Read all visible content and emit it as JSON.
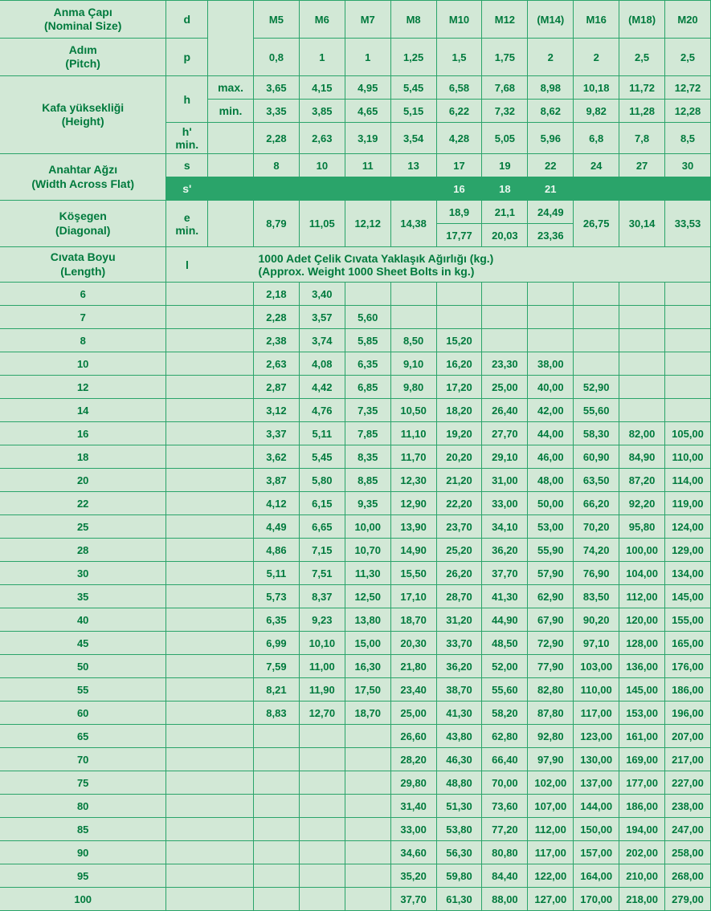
{
  "labels": {
    "nominal": "Anma Çapı\n(Nominal Size)",
    "pitch": "Adım\n(Pitch)",
    "height": "Kafa yüksekliği\n(Height)",
    "waf": "Anahtar Ağzı\n(Width Across Flat)",
    "diag": "Köşegen\n(Diagonal)",
    "length": "Cıvata Boyu\n(Length)",
    "weight": "1000 Adet Çelik Cıvata Yaklaşık Ağırlığı (kg.)\n(Approx. Weight 1000 Sheet Bolts in kg.)"
  },
  "syms": {
    "d": "d",
    "p": "p",
    "h": "h",
    "hp": "h'\nmin.",
    "s": "s",
    "sp": "s'",
    "e": "e\nmin.",
    "l": "l",
    "max": "max.",
    "min": "min."
  },
  "sizes": [
    "M5",
    "M6",
    "M7",
    "M8",
    "M10",
    "M12",
    "(M14)",
    "M16",
    "(M18)",
    "M20"
  ],
  "pitch": [
    "0,8",
    "1",
    "1",
    "1,25",
    "1,5",
    "1,75",
    "2",
    "2",
    "2,5",
    "2,5"
  ],
  "h_max": [
    "3,65",
    "4,15",
    "4,95",
    "5,45",
    "6,58",
    "7,68",
    "8,98",
    "10,18",
    "11,72",
    "12,72"
  ],
  "h_min": [
    "3,35",
    "3,85",
    "4,65",
    "5,15",
    "6,22",
    "7,32",
    "8,62",
    "9,82",
    "11,28",
    "12,28"
  ],
  "hp_min": [
    "2,28",
    "2,63",
    "3,19",
    "3,54",
    "4,28",
    "5,05",
    "5,96",
    "6,8",
    "7,8",
    "8,5"
  ],
  "s": [
    "8",
    "10",
    "11",
    "13",
    "17",
    "19",
    "22",
    "24",
    "27",
    "30"
  ],
  "sp": [
    "",
    "",
    "",
    "",
    "16",
    "18",
    "21",
    "",
    "",
    ""
  ],
  "e1": [
    "8,79",
    "11,05",
    "12,12",
    "14,38",
    "18,9",
    "21,1",
    "24,49",
    "26,75",
    "30,14",
    "33,53"
  ],
  "e2": [
    "",
    "",
    "",
    "",
    "17,77",
    "20,03",
    "23,36",
    "",
    "",
    ""
  ],
  "lengths": [
    "6",
    "7",
    "8",
    "10",
    "12",
    "14",
    "16",
    "18",
    "20",
    "22",
    "25",
    "28",
    "30",
    "35",
    "40",
    "45",
    "50",
    "55",
    "60",
    "65",
    "70",
    "75",
    "80",
    "85",
    "90",
    "95",
    "100"
  ],
  "weights": [
    [
      "2,18",
      "3,40",
      "",
      "",
      "",
      "",
      "",
      "",
      "",
      ""
    ],
    [
      "2,28",
      "3,57",
      "5,60",
      "",
      "",
      "",
      "",
      "",
      "",
      ""
    ],
    [
      "2,38",
      "3,74",
      "5,85",
      "8,50",
      "15,20",
      "",
      "",
      "",
      "",
      ""
    ],
    [
      "2,63",
      "4,08",
      "6,35",
      "9,10",
      "16,20",
      "23,30",
      "38,00",
      "",
      "",
      ""
    ],
    [
      "2,87",
      "4,42",
      "6,85",
      "9,80",
      "17,20",
      "25,00",
      "40,00",
      "52,90",
      "",
      ""
    ],
    [
      "3,12",
      "4,76",
      "7,35",
      "10,50",
      "18,20",
      "26,40",
      "42,00",
      "55,60",
      "",
      ""
    ],
    [
      "3,37",
      "5,11",
      "7,85",
      "11,10",
      "19,20",
      "27,70",
      "44,00",
      "58,30",
      "82,00",
      "105,00"
    ],
    [
      "3,62",
      "5,45",
      "8,35",
      "11,70",
      "20,20",
      "29,10",
      "46,00",
      "60,90",
      "84,90",
      "110,00"
    ],
    [
      "3,87",
      "5,80",
      "8,85",
      "12,30",
      "21,20",
      "31,00",
      "48,00",
      "63,50",
      "87,20",
      "114,00"
    ],
    [
      "4,12",
      "6,15",
      "9,35",
      "12,90",
      "22,20",
      "33,00",
      "50,00",
      "66,20",
      "92,20",
      "119,00"
    ],
    [
      "4,49",
      "6,65",
      "10,00",
      "13,90",
      "23,70",
      "34,10",
      "53,00",
      "70,20",
      "95,80",
      "124,00"
    ],
    [
      "4,86",
      "7,15",
      "10,70",
      "14,90",
      "25,20",
      "36,20",
      "55,90",
      "74,20",
      "100,00",
      "129,00"
    ],
    [
      "5,11",
      "7,51",
      "11,30",
      "15,50",
      "26,20",
      "37,70",
      "57,90",
      "76,90",
      "104,00",
      "134,00"
    ],
    [
      "5,73",
      "8,37",
      "12,50",
      "17,10",
      "28,70",
      "41,30",
      "62,90",
      "83,50",
      "112,00",
      "145,00"
    ],
    [
      "6,35",
      "9,23",
      "13,80",
      "18,70",
      "31,20",
      "44,90",
      "67,90",
      "90,20",
      "120,00",
      "155,00"
    ],
    [
      "6,99",
      "10,10",
      "15,00",
      "20,30",
      "33,70",
      "48,50",
      "72,90",
      "97,10",
      "128,00",
      "165,00"
    ],
    [
      "7,59",
      "11,00",
      "16,30",
      "21,80",
      "36,20",
      "52,00",
      "77,90",
      "103,00",
      "136,00",
      "176,00"
    ],
    [
      "8,21",
      "11,90",
      "17,50",
      "23,40",
      "38,70",
      "55,60",
      "82,80",
      "110,00",
      "145,00",
      "186,00"
    ],
    [
      "8,83",
      "12,70",
      "18,70",
      "25,00",
      "41,30",
      "58,20",
      "87,80",
      "117,00",
      "153,00",
      "196,00"
    ],
    [
      "",
      "",
      "",
      "26,60",
      "43,80",
      "62,80",
      "92,80",
      "123,00",
      "161,00",
      "207,00"
    ],
    [
      "",
      "",
      "",
      "28,20",
      "46,30",
      "66,40",
      "97,90",
      "130,00",
      "169,00",
      "217,00"
    ],
    [
      "",
      "",
      "",
      "29,80",
      "48,80",
      "70,00",
      "102,00",
      "137,00",
      "177,00",
      "227,00"
    ],
    [
      "",
      "",
      "",
      "31,40",
      "51,30",
      "73,60",
      "107,00",
      "144,00",
      "186,00",
      "238,00"
    ],
    [
      "",
      "",
      "",
      "33,00",
      "53,80",
      "77,20",
      "112,00",
      "150,00",
      "194,00",
      "247,00"
    ],
    [
      "",
      "",
      "",
      "34,60",
      "56,30",
      "80,80",
      "117,00",
      "157,00",
      "202,00",
      "258,00"
    ],
    [
      "",
      "",
      "",
      "35,20",
      "59,80",
      "84,40",
      "122,00",
      "164,00",
      "210,00",
      "268,00"
    ],
    [
      "",
      "",
      "",
      "37,70",
      "61,30",
      "88,00",
      "127,00",
      "170,00",
      "218,00",
      "279,00"
    ]
  ],
  "colors": {
    "bg": "#d2e8d6",
    "ink": "#007a3d",
    "line": "#2aa46a",
    "dark": "#2aa46a"
  }
}
